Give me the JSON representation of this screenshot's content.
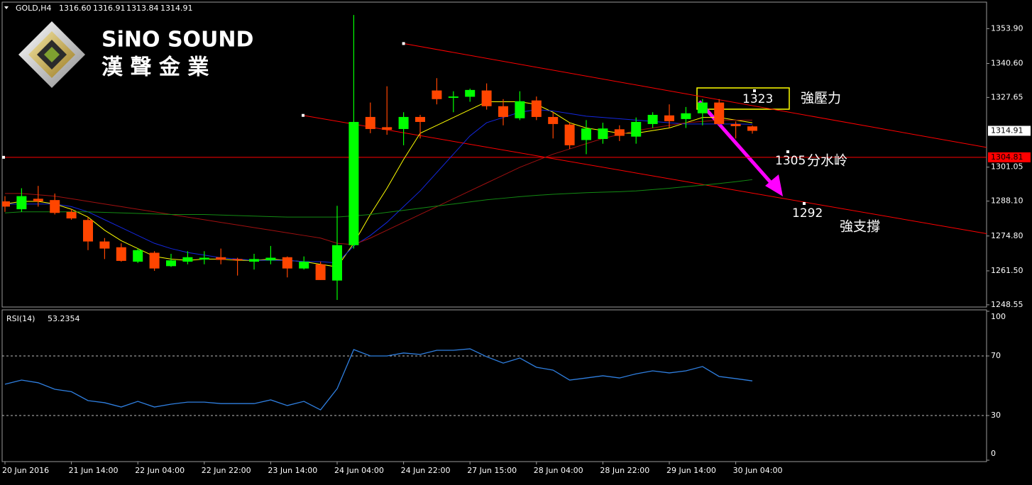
{
  "header": {
    "symbol": "GOLD,H4",
    "ohlc": [
      "1316.60",
      "1316.91",
      "1313.84",
      "1314.91"
    ]
  },
  "logo": {
    "name": "SiNO SOUND",
    "subtitle": "漢 聲 金 業"
  },
  "chart_data": [
    {
      "type": "candlestick",
      "categories": [
        "20 Jun 2016",
        null,
        null,
        null,
        "21 Jun 14:00",
        null,
        null,
        null,
        "22 Jun 04:00",
        null,
        null,
        null,
        "22 Jun 22:00",
        null,
        null,
        null,
        "23 Jun 14:00",
        null,
        null,
        null,
        "24 Jun 04:00",
        null,
        null,
        null,
        "24 Jun 22:00",
        null,
        null,
        null,
        "27 Jun 15:00",
        null,
        null,
        null,
        "28 Jun 04:00",
        null,
        null,
        null,
        "28 Jun 22:00",
        null,
        null,
        null,
        "29 Jun 14:00",
        null,
        null,
        null,
        "30 Jun 04:00",
        null
      ],
      "open": [
        1288,
        1285,
        1289,
        1288.5,
        1284,
        1280.9,
        1272.7,
        1270.5,
        1265,
        1268.4,
        1263.3,
        1265,
        1265.8,
        1266.7,
        1266,
        1265,
        1265.5,
        1266.7,
        1262.4,
        1264,
        1257.8,
        1271.3,
        1320.2,
        1316.3,
        1315.6,
        1320.2,
        1330.3,
        1327.5,
        1327.9,
        1330.3,
        1324.3,
        1319.7,
        1326.5,
        1320.2,
        1317.3,
        1311.4,
        1311.8,
        1315.5,
        1312.7,
        1317.5,
        1320.8,
        1319.4,
        1321.6,
        1325.7,
        1317.5,
        1316.6
      ],
      "high": [
        1290,
        1293,
        1293.9,
        1291,
        1285,
        1282,
        1274,
        1272,
        1270,
        1269,
        1268,
        1269,
        1269,
        1270,
        1266.5,
        1268,
        1271,
        1267,
        1267,
        1265,
        1286.3,
        1359.1,
        1325.7,
        1331.9,
        1322,
        1321,
        1335,
        1330,
        1331,
        1333,
        1327,
        1330,
        1328,
        1322,
        1318,
        1319,
        1318,
        1317,
        1320,
        1322,
        1325,
        1324,
        1327,
        1327,
        1318.5,
        1316.91
      ],
      "low": [
        1284,
        1284,
        1286,
        1283,
        1281,
        1269.4,
        1266,
        1265,
        1264.5,
        1261.5,
        1263,
        1264,
        1264,
        1264,
        1259.7,
        1262,
        1264,
        1259,
        1262,
        1258,
        1250.4,
        1270,
        1314,
        1313.4,
        1309.4,
        1312,
        1325,
        1322,
        1326,
        1323,
        1317,
        1319,
        1319,
        1312,
        1308,
        1306,
        1310,
        1311,
        1310,
        1316,
        1316,
        1316,
        1317,
        1317,
        1312,
        1313.84
      ],
      "close": [
        1286,
        1290,
        1288,
        1283.6,
        1281.5,
        1272.7,
        1270,
        1265.3,
        1269.4,
        1262.4,
        1265.5,
        1266.7,
        1266.5,
        1265.7,
        1265.5,
        1266,
        1266.5,
        1262.4,
        1265,
        1258,
        1271.3,
        1318.3,
        1315.6,
        1315.3,
        1320.2,
        1318.3,
        1327,
        1328,
        1330.5,
        1324.3,
        1320.2,
        1326.2,
        1320.2,
        1317.5,
        1309.4,
        1315.8,
        1315.8,
        1313,
        1318.3,
        1321,
        1318.6,
        1321.6,
        1325.7,
        1317.5,
        1316.7,
        1314.91
      ],
      "up_color": "#00ff00",
      "down_color": "#ff4500",
      "moving_averages": [
        {
          "color": "#ffff00",
          "values": [
            1287,
            1288,
            1288,
            1287,
            1285,
            1282,
            1277,
            1273,
            1270,
            1267,
            1266,
            1265.5,
            1266,
            1266,
            1265.5,
            1265.5,
            1266,
            1265.5,
            1265,
            1264,
            1263,
            1272,
            1283,
            1293,
            1304,
            1314,
            1317,
            1320,
            1323,
            1326,
            1326,
            1326,
            1325,
            1322,
            1318,
            1316,
            1315,
            1314,
            1314,
            1315,
            1316,
            1318,
            1320,
            1320,
            1319,
            1318
          ]
        },
        {
          "color": "#1428e0",
          "values": [
            1287,
            1287,
            1287,
            1287,
            1286,
            1284,
            1281,
            1278,
            1275,
            1272,
            1270,
            1268.5,
            1267.5,
            1266.5,
            1266,
            1265.5,
            1265.5,
            1265.5,
            1265,
            1265,
            1264.5,
            1271,
            1275,
            1280,
            1286,
            1292,
            1299,
            1306,
            1313,
            1318,
            1320,
            1322,
            1323,
            1322.5,
            1321.5,
            1320.5,
            1320,
            1319.5,
            1319,
            1318.5,
            1318,
            1317.5,
            1317.5,
            1317.5,
            1317.5,
            1317.4
          ]
        },
        {
          "color": "#a01010",
          "values": [
            1291,
            1291,
            1290.5,
            1290,
            1289,
            1288,
            1287,
            1286,
            1285,
            1284,
            1283,
            1282,
            1281,
            1280,
            1279,
            1278,
            1277,
            1276,
            1275,
            1274,
            1272,
            1271.5,
            1274,
            1277,
            1280,
            1283,
            1286,
            1289,
            1292,
            1295,
            1298,
            1301,
            1303.5,
            1306,
            1308,
            1310,
            1312,
            1313.5,
            1315,
            1316,
            1317,
            1318,
            1318.5,
            1319,
            1319,
            1319
          ]
        },
        {
          "color": "#138a13",
          "values": [
            1283.6,
            1284,
            1284,
            1284,
            1284,
            1284,
            1283.8,
            1283.6,
            1283.4,
            1283.2,
            1283,
            1283,
            1283,
            1282.8,
            1282.6,
            1282.4,
            1282.2,
            1282,
            1282,
            1282,
            1282,
            1282.5,
            1283,
            1283.8,
            1284.6,
            1285.4,
            1286.2,
            1287,
            1287.8,
            1288.6,
            1289.2,
            1289.8,
            1290.3,
            1290.7,
            1291,
            1291.3,
            1291.5,
            1291.7,
            1292,
            1292.5,
            1293,
            1293.6,
            1294.2,
            1294.8,
            1295.5,
            1296.3
          ]
        }
      ],
      "trendlines": [
        {
          "color": "#ff0000",
          "x": [
            24,
            59.1
          ],
          "y": [
            1348.2,
            1308.6
          ]
        },
        {
          "color": "#ff0000",
          "x": [
            17.95,
            59.1
          ],
          "y": [
            1320.8,
            1275.7
          ]
        }
      ],
      "level": {
        "value": 1304.81,
        "label": "1304.81",
        "color": "#ff0000"
      },
      "last_price": {
        "value": 1314.91,
        "label": "1314.91"
      },
      "annotations": [
        {
          "value": 1323,
          "text": "強壓力"
        },
        {
          "value": 1305,
          "text": "分水岭"
        },
        {
          "value": 1292,
          "text": "強支撐"
        }
      ],
      "ylim": [
        1247.7,
        1364
      ],
      "yticks": [
        {
          "value": 1353.9,
          "label": "1353.90"
        },
        {
          "value": 1340.6,
          "label": "1340.60"
        },
        {
          "value": 1327.65,
          "label": "1327.65"
        },
        {
          "value": 1301.05,
          "label": "1301.05"
        },
        {
          "value": 1288.1,
          "label": "1288.10"
        },
        {
          "value": 1274.8,
          "label": "1274.80"
        },
        {
          "value": 1261.5,
          "label": "1261.50"
        },
        {
          "value": 1248.55,
          "label": "1248.55"
        }
      ]
    },
    {
      "type": "line",
      "title": "RSI(14)",
      "color": "#2f7fe0",
      "values": [
        51,
        53.8,
        52,
        47.6,
        46,
        40,
        38.6,
        35.7,
        39.5,
        35.7,
        37.6,
        39,
        39,
        38,
        38,
        38,
        40.5,
        36.7,
        39.5,
        33.8,
        48,
        74.3,
        70,
        70,
        72,
        71,
        73.8,
        73.8,
        74.8,
        69.5,
        65.2,
        68.6,
        62.4,
        60.5,
        53.8,
        55.2,
        56.7,
        55.2,
        58,
        60,
        58.6,
        60,
        62.9,
        56.2,
        54.8,
        53.2354
      ],
      "ylim": [
        0,
        100
      ],
      "yticks": [
        0,
        30,
        70,
        100
      ]
    }
  ]
}
